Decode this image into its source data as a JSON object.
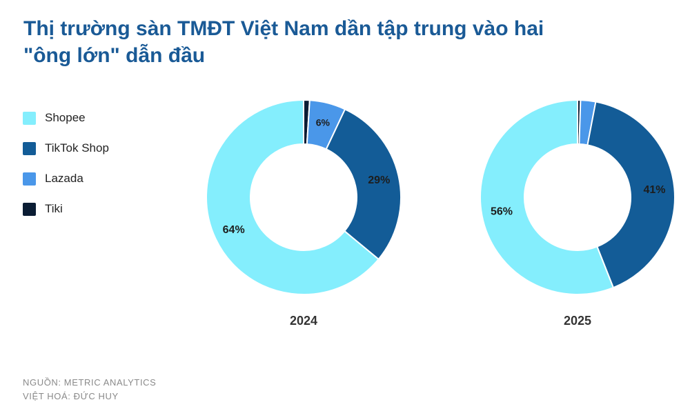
{
  "title": "Thị trường sàn TMĐT Việt Nam dần tập trung vào hai \"ông lớn\" dẫn đầu",
  "chart_data": {
    "type": "pie",
    "variant": "donut",
    "title": "Thị trường sàn TMĐT Việt Nam dần tập trung vào hai \"ông lớn\" dẫn đầu",
    "legend_position": "left",
    "categories": [
      "Shopee",
      "TikTok Shop",
      "Lazada",
      "Tiki"
    ],
    "colors": [
      "#84eefd",
      "#135c97",
      "#4a97e9",
      "#0b1d34"
    ],
    "charts": [
      {
        "label": "2024",
        "values": [
          64,
          29,
          6,
          1
        ],
        "value_labels": [
          "64%",
          "29%",
          "6%",
          ""
        ]
      },
      {
        "label": "2025",
        "values": [
          56,
          41,
          2.5,
          0.5
        ],
        "value_labels": [
          "56%",
          "41%",
          "",
          ""
        ]
      }
    ]
  },
  "footer": {
    "source": "NGUỒN: METRIC ANALYTICS",
    "translation": "VIỆT HOÁ: ĐỨC HUY"
  }
}
